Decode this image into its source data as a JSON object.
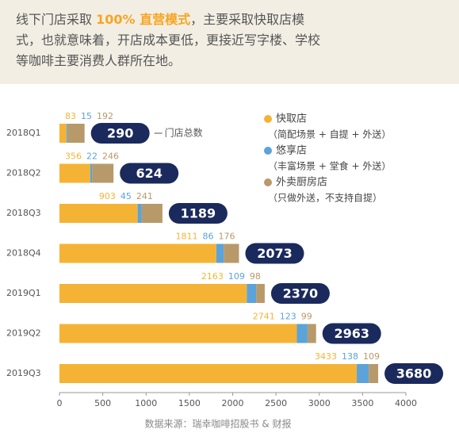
{
  "intro": {
    "lines": [
      [
        "线下门店采取 ",
        "100% 直营模式",
        "，主要采取快取店模"
      ],
      [
        "式，也就意味着，开店成本更低，更接近写字楼、学校"
      ],
      [
        "等咖啡主要消费人群所在地。"
      ]
    ]
  },
  "chart_data": {
    "type": "bar",
    "orientation": "horizontal",
    "stacked": true,
    "categories": [
      "2018Q1",
      "2018Q2",
      "2018Q3",
      "2018Q4",
      "2019Q1",
      "2019Q2",
      "2019Q3"
    ],
    "series": [
      {
        "name": "快取店",
        "note": "（简配场景 + 自提 + 外送）",
        "color": "#f5b335",
        "values": [
          83,
          356,
          903,
          1811,
          2163,
          2741,
          3433
        ]
      },
      {
        "name": "悠享店",
        "note": "（丰富场景 + 堂食 + 外送）",
        "color": "#5ba3d9",
        "values": [
          15,
          22,
          45,
          86,
          109,
          123,
          138
        ]
      },
      {
        "name": "外卖厨房店",
        "note": "（只做外送，不支持自提）",
        "color": "#b8996a",
        "values": [
          192,
          246,
          241,
          176,
          98,
          99,
          109
        ]
      }
    ],
    "totals": [
      290,
      624,
      1189,
      2073,
      2370,
      2963,
      3680
    ],
    "totals_label": "门店总数",
    "totals_color": "#1b2a5c",
    "xlim": [
      0,
      4000
    ],
    "xticks": [
      0,
      500,
      1000,
      1500,
      2000,
      2500,
      3000,
      3500,
      4000
    ],
    "source": "数据来源：瑞幸咖啡招股书 & 财报"
  }
}
